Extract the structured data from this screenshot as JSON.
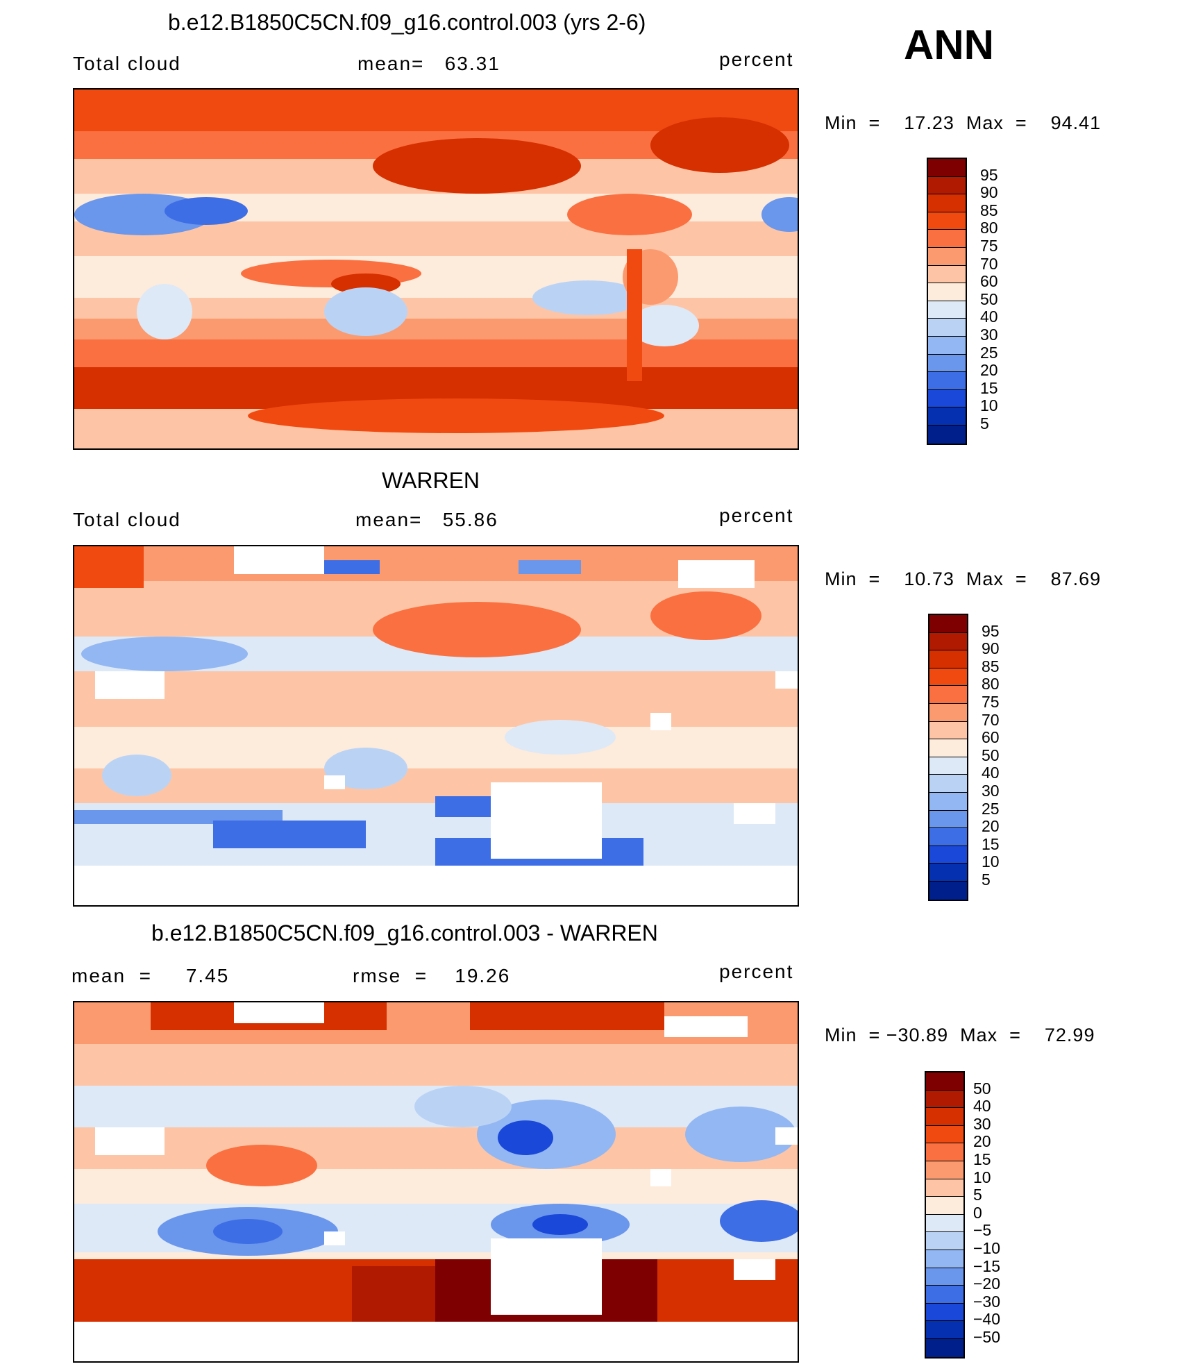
{
  "season": "ANN",
  "panels": [
    {
      "id": "model",
      "title": "b.e12.B1850C5CN.f09_g16.control.003 (yrs 2-6)",
      "left_label": "Total cloud",
      "center_label": "mean=   63.31",
      "units": "percent",
      "minmax": "Min  =    17.23  Max  =    94.41"
    },
    {
      "id": "obs",
      "title": "WARREN",
      "left_label": "Total cloud",
      "center_label": "mean=   55.86",
      "units": "percent",
      "minmax": "Min  =    10.73  Max  =    87.69"
    },
    {
      "id": "diff",
      "title": "b.e12.B1850C5CN.f09_g16.control.003 - WARREN",
      "left_label": "mean  =     7.45",
      "center_label": "rmse  =    19.26",
      "units": "percent",
      "minmax": "Min  = −30.89  Max  =    72.99"
    }
  ],
  "colorbars": [
    {
      "labels": [
        "95",
        "90",
        "85",
        "80",
        "75",
        "70",
        "60",
        "50",
        "40",
        "30",
        "25",
        "20",
        "15",
        "10",
        "5"
      ],
      "colors": [
        "#7f0000",
        "#b01a00",
        "#d62f00",
        "#f04a10",
        "#fa7040",
        "#fb9a6e",
        "#fdc5a6",
        "#fdebdc",
        "#dde9f7",
        "#bad3f5",
        "#93b7f2",
        "#6a96ec",
        "#3e6ee5",
        "#1a48d8",
        "#0530b0",
        "#001f8a"
      ]
    },
    {
      "labels": [
        "95",
        "90",
        "85",
        "80",
        "75",
        "70",
        "60",
        "50",
        "40",
        "30",
        "25",
        "20",
        "15",
        "10",
        "5"
      ],
      "colors": [
        "#7f0000",
        "#b01a00",
        "#d62f00",
        "#f04a10",
        "#fa7040",
        "#fb9a6e",
        "#fdc5a6",
        "#fdebdc",
        "#dde9f7",
        "#bad3f5",
        "#93b7f2",
        "#6a96ec",
        "#3e6ee5",
        "#1a48d8",
        "#0530b0",
        "#001f8a"
      ]
    },
    {
      "labels": [
        "50",
        "40",
        "30",
        "20",
        "15",
        "10",
        "5",
        "0",
        "−5",
        "−10",
        "−15",
        "−20",
        "−30",
        "−40",
        "−50"
      ],
      "colors": [
        "#7f0000",
        "#b01a00",
        "#d62f00",
        "#f04a10",
        "#fa7040",
        "#fb9a6e",
        "#fdc5a6",
        "#fdebdc",
        "#dde9f7",
        "#bad3f5",
        "#93b7f2",
        "#6a96ec",
        "#3e6ee5",
        "#1a48d8",
        "#0530b0",
        "#001f8a"
      ]
    }
  ]
}
